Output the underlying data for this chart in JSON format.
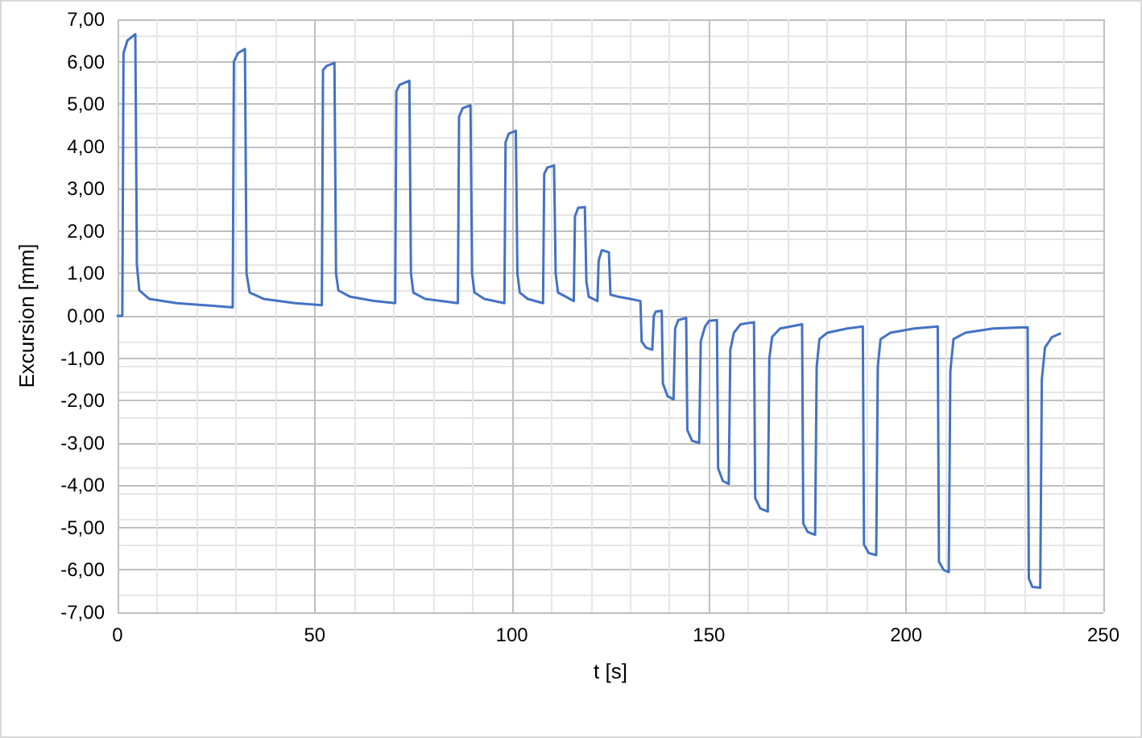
{
  "chart_data": {
    "type": "line",
    "xlabel": "t [s]",
    "ylabel": "Excursion [mm]",
    "xlim": [
      0,
      250
    ],
    "xticks": [
      0,
      50,
      100,
      150,
      200,
      250
    ],
    "ylim": [
      -7,
      7
    ],
    "yticks": [
      {
        "value": -7,
        "label": "-7,00"
      },
      {
        "value": -6,
        "label": "-6,00"
      },
      {
        "value": -5,
        "label": "-5,00"
      },
      {
        "value": -4,
        "label": "-4,00"
      },
      {
        "value": -3,
        "label": "-3,00"
      },
      {
        "value": -2,
        "label": "-2,00"
      },
      {
        "value": -1,
        "label": "-1,00"
      },
      {
        "value": 0,
        "label": "0,00"
      },
      {
        "value": 1,
        "label": "1,00"
      },
      {
        "value": 2,
        "label": "2,00"
      },
      {
        "value": 3,
        "label": "3,00"
      },
      {
        "value": 4,
        "label": "4,00"
      },
      {
        "value": 5,
        "label": "5,00"
      },
      {
        "value": 6,
        "label": "6,00"
      },
      {
        "value": 7,
        "label": "7,00"
      }
    ],
    "grid": true,
    "marker": "none",
    "line_style": "solid",
    "series": [
      {
        "color": "#4472c4",
        "x": [
          0,
          1.2,
          1.5,
          2.5,
          4.5,
          4.9,
          5.5,
          8,
          15,
          29.2,
          29.5,
          30.5,
          32.3,
          32.7,
          33.5,
          37,
          45,
          51.8,
          52.1,
          53,
          55,
          55.4,
          56,
          59,
          65,
          70.4,
          70.7,
          71.5,
          74,
          74.4,
          75,
          78,
          86.3,
          86.6,
          87.5,
          89.5,
          89.9,
          90.5,
          93,
          98.1,
          98.4,
          99.2,
          101,
          101.4,
          102,
          104,
          107.9,
          108.2,
          109,
          110.7,
          111.1,
          111.7,
          115.7,
          116,
          116.8,
          118.5,
          118.9,
          119.5,
          121.7,
          122,
          122.8,
          124.6,
          125,
          127,
          130,
          132.6,
          132.9,
          134,
          135.6,
          136,
          136.5,
          138,
          138.3,
          139.5,
          141,
          141.4,
          142.2,
          144.2,
          144.5,
          145.7,
          147.5,
          147.9,
          149,
          150,
          152,
          152.3,
          153.5,
          155,
          155.4,
          156.3,
          158,
          161.4,
          161.7,
          163,
          164.9,
          165.3,
          166,
          168,
          173.6,
          173.9,
          175,
          176.9,
          177.3,
          178,
          180,
          185,
          189,
          189.3,
          190.5,
          192.4,
          192.8,
          193.5,
          196,
          202,
          208,
          208.3,
          209.5,
          210.8,
          211.2,
          212,
          215,
          222,
          230.8,
          231.1,
          232,
          234,
          234.4,
          235.2,
          237,
          239
        ],
        "values": [
          0,
          0,
          6.2,
          6.5,
          6.65,
          1.2,
          0.6,
          0.4,
          0.3,
          0.2,
          6.0,
          6.2,
          6.3,
          1.0,
          0.55,
          0.4,
          0.3,
          0.25,
          5.8,
          5.9,
          5.97,
          1.0,
          0.6,
          0.45,
          0.35,
          0.3,
          5.3,
          5.45,
          5.55,
          1.0,
          0.55,
          0.4,
          0.3,
          4.7,
          4.9,
          4.97,
          1.0,
          0.55,
          0.4,
          0.3,
          4.1,
          4.3,
          4.37,
          1.0,
          0.55,
          0.4,
          0.3,
          3.35,
          3.5,
          3.55,
          1.0,
          0.55,
          0.35,
          2.35,
          2.55,
          2.57,
          0.8,
          0.45,
          0.35,
          1.3,
          1.55,
          1.5,
          0.5,
          0.45,
          0.4,
          0.35,
          -0.6,
          -0.75,
          -0.8,
          0.0,
          0.1,
          0.12,
          -1.6,
          -1.9,
          -1.97,
          -0.3,
          -0.1,
          -0.05,
          -2.7,
          -2.95,
          -3.0,
          -0.6,
          -0.25,
          -0.12,
          -0.1,
          -3.6,
          -3.9,
          -3.97,
          -0.8,
          -0.4,
          -0.2,
          -0.15,
          -4.3,
          -4.55,
          -4.62,
          -1.0,
          -0.5,
          -0.3,
          -0.2,
          -4.9,
          -5.1,
          -5.17,
          -1.2,
          -0.55,
          -0.4,
          -0.3,
          -0.25,
          -5.4,
          -5.6,
          -5.65,
          -1.2,
          -0.55,
          -0.4,
          -0.3,
          -0.25,
          -5.8,
          -6.0,
          -6.05,
          -1.3,
          -0.55,
          -0.4,
          -0.3,
          -0.27,
          -6.2,
          -6.4,
          -6.42,
          -1.5,
          -0.75,
          -0.5,
          -0.42
        ]
      }
    ]
  }
}
